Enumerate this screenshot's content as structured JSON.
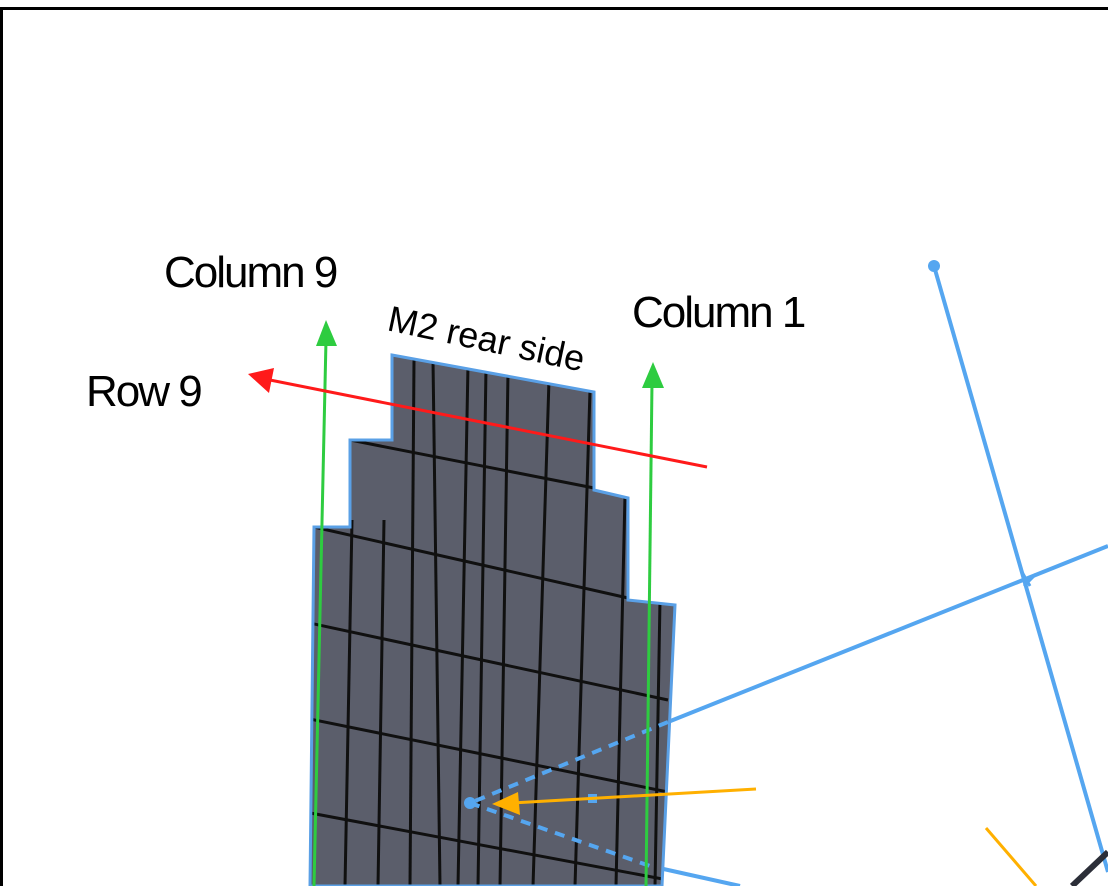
{
  "labels": {
    "column_9": "Column 9",
    "column_1": "Column 1",
    "row_9": "Row 9",
    "m2_rear_side": "M2 rear side"
  },
  "colors": {
    "frame": "#000000",
    "mirror_fill": "#5b5e6b",
    "mirror_edge": "#5aa0e6",
    "grid_line": "#101010",
    "column_arrow": "#2ecc40",
    "row_arrow": "#ff1a1a",
    "beam": "#55a6f0",
    "pointer": "#ffb000"
  },
  "icons": {
    "column_arrow": "arrow-up-icon",
    "row_arrow": "arrow-left-icon",
    "pointer_arrow": "arrow-left-icon"
  }
}
